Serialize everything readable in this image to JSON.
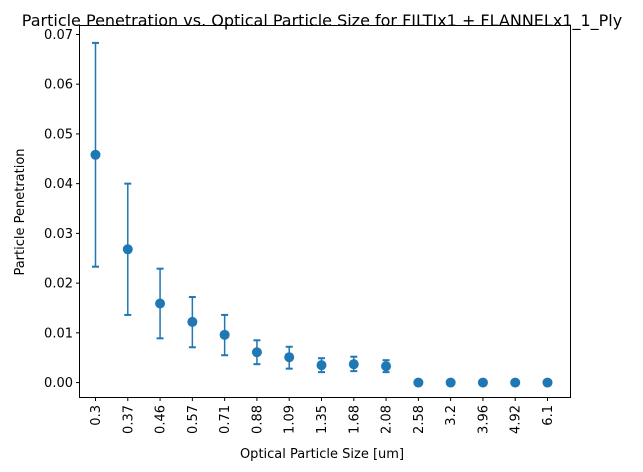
{
  "chart_data": {
    "type": "scatter",
    "title": "Particle Penetration vs. Optical Particle Size for FILTIx1 + FLANNELx1_1_Ply",
    "xlabel": "Optical Particle Size [um]",
    "ylabel": "Particle Penetration",
    "categories": [
      "0.3",
      "0.37",
      "0.46",
      "0.57",
      "0.71",
      "0.88",
      "1.09",
      "1.35",
      "1.68",
      "2.08",
      "2.58",
      "3.2",
      "3.96",
      "4.92",
      "6.1"
    ],
    "values": [
      0.0458,
      0.0268,
      0.0159,
      0.0122,
      0.0096,
      0.0061,
      0.0051,
      0.0035,
      0.0037,
      0.0033,
      0.0,
      0.0,
      0.0,
      0.0,
      0.0
    ],
    "error_lower": [
      0.0233,
      0.0136,
      0.0089,
      0.0071,
      0.0055,
      0.0037,
      0.0028,
      0.0021,
      0.0023,
      0.0021,
      0.0,
      0.0,
      0.0,
      0.0,
      0.0
    ],
    "error_upper": [
      0.0683,
      0.04,
      0.0229,
      0.0172,
      0.0136,
      0.0085,
      0.0072,
      0.0049,
      0.0052,
      0.0045,
      0.0,
      0.0,
      0.0,
      0.0,
      0.0
    ],
    "ylim": [
      -0.0029,
      0.0717
    ],
    "yticks": [
      0.0,
      0.01,
      0.02,
      0.03,
      0.04,
      0.05,
      0.06,
      0.07
    ],
    "ytick_labels": [
      "0.00",
      "0.01",
      "0.02",
      "0.03",
      "0.04",
      "0.05",
      "0.06",
      "0.07"
    ],
    "grid": false,
    "color": "#1f77b4"
  }
}
